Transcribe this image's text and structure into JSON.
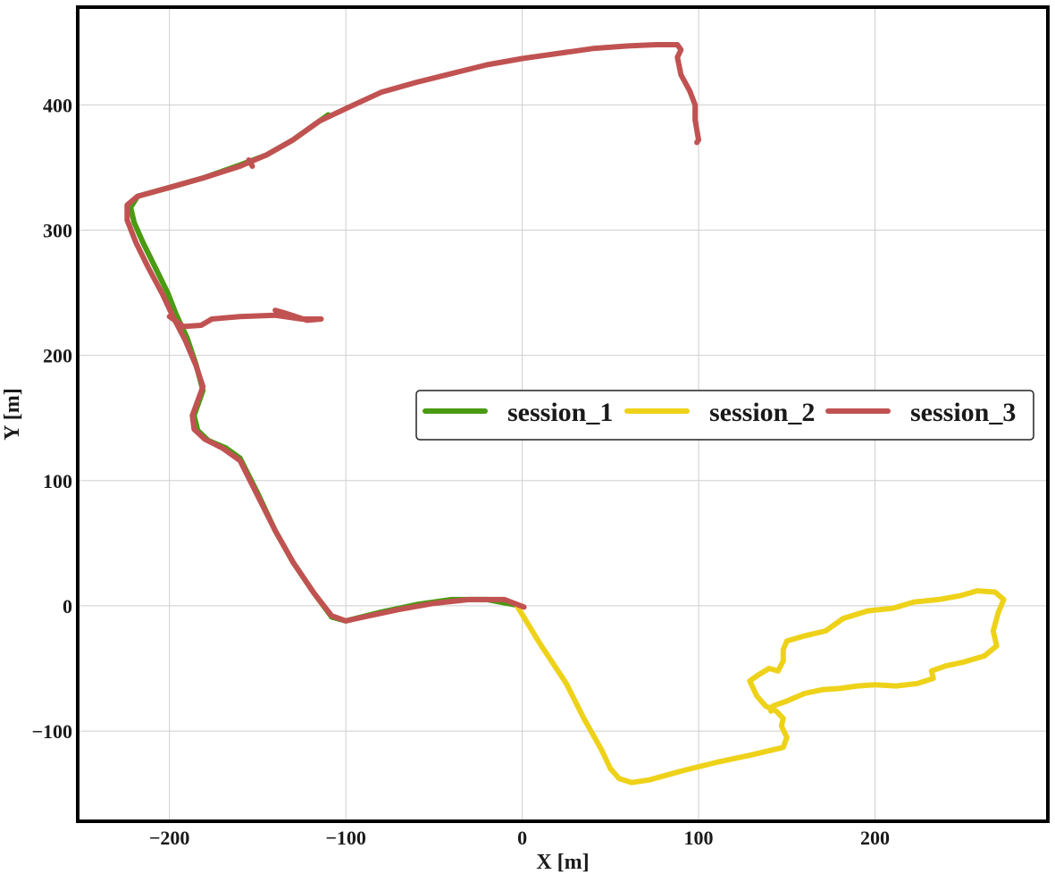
{
  "chart_data": {
    "type": "line",
    "title": "",
    "xlabel": "X [m]",
    "ylabel": "Y [m]",
    "xlim": [
      -252,
      298
    ],
    "ylim": [
      -172,
      478
    ],
    "xticks": [
      -200,
      -100,
      0,
      100,
      200
    ],
    "yticks": [
      -100,
      0,
      100,
      200,
      300,
      400
    ],
    "xtick_labels": [
      "−200",
      "−100",
      "0",
      "100",
      "200"
    ],
    "ytick_labels": [
      "−100",
      "0",
      "100",
      "200",
      "300",
      "400"
    ],
    "grid": true,
    "legend_position": "center-right",
    "series": [
      {
        "name": "session_1",
        "color": "#4a9a12",
        "points": [
          [
            -1,
            0
          ],
          [
            -20,
            5
          ],
          [
            -40,
            5
          ],
          [
            -60,
            1
          ],
          [
            -80,
            -5
          ],
          [
            -100,
            -12
          ],
          [
            -108,
            -9
          ],
          [
            -118,
            10
          ],
          [
            -130,
            35
          ],
          [
            -140,
            60
          ],
          [
            -150,
            90
          ],
          [
            -160,
            118
          ],
          [
            -168,
            126
          ],
          [
            -178,
            132
          ],
          [
            -184,
            140
          ],
          [
            -186,
            152
          ],
          [
            -181,
            172
          ],
          [
            -185,
            193
          ],
          [
            -190,
            214
          ],
          [
            -196,
            232
          ],
          [
            -201,
            250
          ],
          [
            -208,
            270
          ],
          [
            -215,
            290
          ],
          [
            -220,
            306
          ],
          [
            -222,
            318
          ],
          [
            -218,
            327
          ],
          [
            -200,
            334
          ],
          [
            -180,
            342
          ],
          [
            -160,
            352
          ],
          [
            -145,
            360
          ],
          [
            -130,
            372
          ],
          [
            -110,
            392
          ]
        ]
      },
      {
        "name": "session_2",
        "color": "#eed21a",
        "points": [
          [
            -3,
            0
          ],
          [
            10,
            -30
          ],
          [
            25,
            -62
          ],
          [
            35,
            -90
          ],
          [
            45,
            -115
          ],
          [
            50,
            -130
          ],
          [
            55,
            -138
          ],
          [
            62,
            -141
          ],
          [
            72,
            -139
          ],
          [
            90,
            -132
          ],
          [
            110,
            -125
          ],
          [
            130,
            -119
          ],
          [
            148,
            -113
          ],
          [
            150,
            -105
          ],
          [
            147,
            -96
          ],
          [
            148,
            -90
          ],
          [
            144,
            -84
          ],
          [
            138,
            -80
          ],
          [
            133,
            -72
          ],
          [
            129,
            -60
          ],
          [
            134,
            -55
          ],
          [
            140,
            -50
          ],
          [
            145,
            -52
          ],
          [
            148,
            -44
          ],
          [
            148,
            -35
          ],
          [
            150,
            -28
          ],
          [
            160,
            -24
          ],
          [
            172,
            -20
          ],
          [
            182,
            -10
          ],
          [
            196,
            -4
          ],
          [
            210,
            -2
          ],
          [
            222,
            3
          ],
          [
            236,
            5
          ],
          [
            248,
            8
          ],
          [
            258,
            12
          ],
          [
            268,
            11
          ],
          [
            273,
            5
          ],
          [
            270,
            -5
          ],
          [
            267,
            -20
          ],
          [
            269,
            -32
          ],
          [
            262,
            -40
          ],
          [
            250,
            -45
          ],
          [
            240,
            -48
          ],
          [
            232,
            -52
          ],
          [
            233,
            -58
          ],
          [
            224,
            -62
          ],
          [
            212,
            -64
          ],
          [
            200,
            -63
          ],
          [
            190,
            -64
          ],
          [
            180,
            -66
          ],
          [
            170,
            -67
          ],
          [
            160,
            -70
          ],
          [
            150,
            -76
          ],
          [
            142,
            -80
          ],
          [
            141,
            -84
          ]
        ]
      },
      {
        "name": "session_3",
        "color": "#c15252",
        "points": [
          [
            1,
            -1
          ],
          [
            -10,
            5
          ],
          [
            -30,
            5
          ],
          [
            -50,
            2
          ],
          [
            -70,
            -3
          ],
          [
            -90,
            -9
          ],
          [
            -100,
            -12
          ],
          [
            -108,
            -8
          ],
          [
            -118,
            10
          ],
          [
            -130,
            35
          ],
          [
            -140,
            60
          ],
          [
            -150,
            88
          ],
          [
            -160,
            116
          ],
          [
            -170,
            126
          ],
          [
            -180,
            133
          ],
          [
            -186,
            141
          ],
          [
            -187,
            152
          ],
          [
            -181,
            175
          ],
          [
            -185,
            192
          ],
          [
            -191,
            212
          ],
          [
            -198,
            231
          ],
          [
            -204,
            249
          ],
          [
            -212,
            270
          ],
          [
            -219,
            290
          ],
          [
            -224,
            308
          ],
          [
            -224,
            320
          ],
          [
            -218,
            327
          ],
          [
            -200,
            334
          ],
          [
            -180,
            342
          ],
          [
            -160,
            351
          ],
          [
            -145,
            360
          ],
          [
            -130,
            372
          ],
          [
            -115,
            387
          ],
          [
            -100,
            397
          ],
          [
            -80,
            410
          ],
          [
            -60,
            418
          ],
          [
            -40,
            425
          ],
          [
            -20,
            432
          ],
          [
            0,
            437
          ],
          [
            20,
            441
          ],
          [
            40,
            445
          ],
          [
            60,
            447
          ],
          [
            76,
            448
          ],
          [
            88,
            448
          ],
          [
            90,
            444
          ],
          [
            88,
            438
          ],
          [
            90,
            424
          ],
          [
            95,
            411
          ],
          [
            98,
            400
          ],
          [
            98,
            388
          ],
          [
            100,
            372
          ],
          [
            99,
            370
          ]
        ],
        "branches": [
          [
            [
              -200,
              231
            ],
            [
              -192,
              223
            ],
            [
              -182,
              224
            ],
            [
              -176,
              229
            ],
            [
              -160,
              231
            ],
            [
              -140,
              232
            ],
            [
              -125,
              229
            ],
            [
              -114,
              229
            ],
            [
              -122,
              228
            ],
            [
              -135,
              234
            ],
            [
              -140,
              236
            ]
          ],
          [
            [
              -155,
              356
            ],
            [
              -153,
              351
            ]
          ]
        ]
      }
    ]
  }
}
